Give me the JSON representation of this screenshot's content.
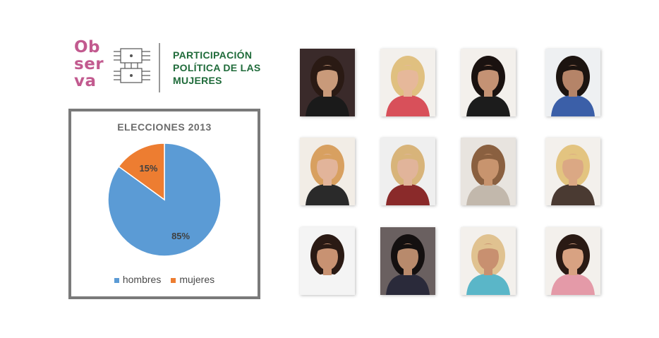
{
  "logo": {
    "word_line1": "Ob",
    "word_line2": "ser",
    "word_line3": "va",
    "title_line1": "PARTICIPACIÓN",
    "title_line2": "POLÍTICA DE LAS",
    "title_line3": "MUJERES",
    "brand_color": "#c25a8f",
    "title_color": "#1f6b3a"
  },
  "chart_data": {
    "type": "pie",
    "title": "ELECCIONES 2013",
    "categories": [
      "hombres",
      "mujeres"
    ],
    "values": [
      85,
      15
    ],
    "labels": [
      "85%",
      "15%"
    ],
    "colors": [
      "#5b9bd5",
      "#ed7d31"
    ],
    "legend": "bottom"
  },
  "photos": [
    {
      "name": "photo-1",
      "bg": "#3a2a2a",
      "skin": "#c99a7a",
      "hair": "#2a1a14",
      "shirt": "#1a1a1a"
    },
    {
      "name": "photo-2",
      "bg": "#f3f0ec",
      "skin": "#e6b89a",
      "hair": "#e0c080",
      "shirt": "#d8505a"
    },
    {
      "name": "photo-3",
      "bg": "#f3f0ec",
      "skin": "#c49274",
      "hair": "#1a1210",
      "shirt": "#1c1c1c"
    },
    {
      "name": "photo-4",
      "bg": "#eef0f2",
      "skin": "#b58468",
      "hair": "#1c1410",
      "shirt": "#3b5fa8"
    },
    {
      "name": "photo-5",
      "bg": "#f2ede6",
      "skin": "#e2b49a",
      "hair": "#d8a060",
      "shirt": "#2a2a2a"
    },
    {
      "name": "photo-6",
      "bg": "#efefef",
      "skin": "#e1b49a",
      "hair": "#d8b47a",
      "shirt": "#8a2a2a"
    },
    {
      "name": "photo-7",
      "bg": "#e8e4df",
      "skin": "#c8946e",
      "hair": "#8a6040",
      "shirt": "#c2b8ac"
    },
    {
      "name": "photo-8",
      "bg": "#f3f0ec",
      "skin": "#dba884",
      "hair": "#e3c480",
      "shirt": "#4a3a32"
    },
    {
      "name": "photo-9",
      "bg": "#f4f4f4",
      "skin": "#c89272",
      "hair": "#2a1a14",
      "shirt": "#f4f4f4"
    },
    {
      "name": "photo-10",
      "bg": "#6a6060",
      "skin": "#b88a6c",
      "hair": "#141010",
      "shirt": "#2a2a3a"
    },
    {
      "name": "photo-11",
      "bg": "#f3f0ec",
      "skin": "#c89070",
      "hair": "#e0c290",
      "shirt": "#5ab6c8"
    },
    {
      "name": "photo-12",
      "bg": "#f3f0ec",
      "skin": "#d8a282",
      "hair": "#2a1a14",
      "shirt": "#e49aa8"
    }
  ]
}
